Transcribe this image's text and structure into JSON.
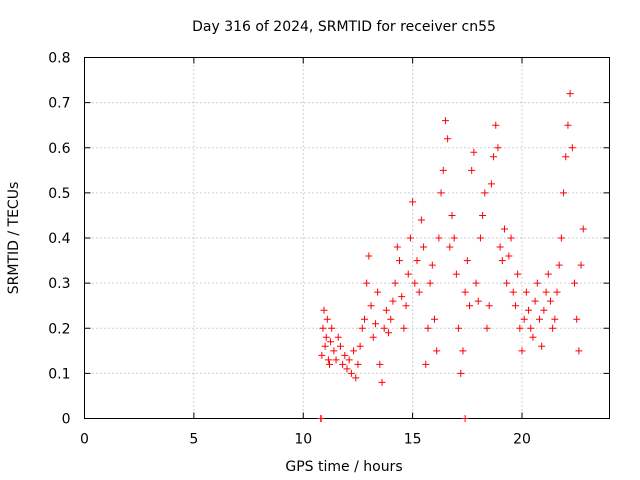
{
  "chart_data": {
    "type": "scatter",
    "title": "Day 316 of 2024, SRMTID for receiver cn55",
    "xlabel": "GPS time / hours",
    "ylabel": "SRMTID / TECUs",
    "xlim": [
      0,
      24
    ],
    "ylim": [
      0,
      0.8
    ],
    "xticks": [
      0,
      5,
      10,
      15,
      20
    ],
    "xtick_labels": [
      "0",
      "5",
      "10",
      "15",
      "20"
    ],
    "yticks": [
      0,
      0.1,
      0.2,
      0.3,
      0.4,
      0.5,
      0.6,
      0.7,
      0.8
    ],
    "ytick_labels": [
      "0",
      "0.1",
      "0.2",
      "0.3",
      "0.4",
      "0.5",
      "0.6",
      "0.7",
      "0.8"
    ],
    "grid": true,
    "legend": "none",
    "marker": "plus",
    "color": "#ff0000",
    "series": [
      {
        "name": "cn55",
        "points": [
          [
            10.8,
            0.0
          ],
          [
            10.82,
            0.0
          ],
          [
            17.4,
            0.0
          ],
          [
            10.85,
            0.14
          ],
          [
            10.9,
            0.2
          ],
          [
            10.95,
            0.24
          ],
          [
            11.0,
            0.16
          ],
          [
            11.05,
            0.18
          ],
          [
            11.1,
            0.22
          ],
          [
            11.15,
            0.13
          ],
          [
            11.2,
            0.12
          ],
          [
            11.25,
            0.17
          ],
          [
            11.3,
            0.2
          ],
          [
            11.4,
            0.15
          ],
          [
            11.5,
            0.13
          ],
          [
            11.6,
            0.18
          ],
          [
            11.7,
            0.16
          ],
          [
            11.8,
            0.12
          ],
          [
            11.9,
            0.14
          ],
          [
            12.0,
            0.11
          ],
          [
            12.1,
            0.13
          ],
          [
            12.2,
            0.1
          ],
          [
            12.3,
            0.15
          ],
          [
            12.4,
            0.09
          ],
          [
            12.5,
            0.12
          ],
          [
            12.6,
            0.16
          ],
          [
            12.7,
            0.2
          ],
          [
            12.8,
            0.22
          ],
          [
            12.9,
            0.3
          ],
          [
            13.0,
            0.36
          ],
          [
            13.1,
            0.25
          ],
          [
            13.2,
            0.18
          ],
          [
            13.3,
            0.21
          ],
          [
            13.4,
            0.28
          ],
          [
            13.5,
            0.12
          ],
          [
            13.6,
            0.08
          ],
          [
            13.7,
            0.2
          ],
          [
            13.8,
            0.24
          ],
          [
            13.9,
            0.19
          ],
          [
            14.0,
            0.22
          ],
          [
            14.1,
            0.26
          ],
          [
            14.2,
            0.3
          ],
          [
            14.3,
            0.38
          ],
          [
            14.4,
            0.35
          ],
          [
            14.5,
            0.27
          ],
          [
            14.6,
            0.2
          ],
          [
            14.7,
            0.25
          ],
          [
            14.8,
            0.32
          ],
          [
            14.9,
            0.4
          ],
          [
            15.0,
            0.48
          ],
          [
            15.1,
            0.3
          ],
          [
            15.2,
            0.35
          ],
          [
            15.3,
            0.28
          ],
          [
            15.4,
            0.44
          ],
          [
            15.5,
            0.38
          ],
          [
            15.6,
            0.12
          ],
          [
            15.7,
            0.2
          ],
          [
            15.8,
            0.3
          ],
          [
            15.9,
            0.34
          ],
          [
            16.0,
            0.22
          ],
          [
            16.1,
            0.15
          ],
          [
            16.2,
            0.4
          ],
          [
            16.3,
            0.5
          ],
          [
            16.4,
            0.55
          ],
          [
            16.5,
            0.66
          ],
          [
            16.6,
            0.62
          ],
          [
            16.7,
            0.38
          ],
          [
            16.8,
            0.45
          ],
          [
            16.9,
            0.4
          ],
          [
            17.0,
            0.32
          ],
          [
            17.1,
            0.2
          ],
          [
            17.2,
            0.1
          ],
          [
            17.3,
            0.15
          ],
          [
            17.4,
            0.28
          ],
          [
            17.5,
            0.35
          ],
          [
            17.6,
            0.25
          ],
          [
            17.7,
            0.55
          ],
          [
            17.8,
            0.59
          ],
          [
            17.9,
            0.3
          ],
          [
            18.0,
            0.26
          ],
          [
            18.1,
            0.4
          ],
          [
            18.2,
            0.45
          ],
          [
            18.3,
            0.5
          ],
          [
            18.4,
            0.2
          ],
          [
            18.5,
            0.25
          ],
          [
            18.6,
            0.52
          ],
          [
            18.7,
            0.58
          ],
          [
            18.8,
            0.65
          ],
          [
            18.9,
            0.6
          ],
          [
            19.0,
            0.38
          ],
          [
            19.1,
            0.35
          ],
          [
            19.2,
            0.42
          ],
          [
            19.3,
            0.3
          ],
          [
            19.4,
            0.36
          ],
          [
            19.5,
            0.4
          ],
          [
            19.6,
            0.28
          ],
          [
            19.7,
            0.25
          ],
          [
            19.8,
            0.32
          ],
          [
            19.9,
            0.2
          ],
          [
            20.0,
            0.15
          ],
          [
            20.1,
            0.22
          ],
          [
            20.2,
            0.28
          ],
          [
            20.3,
            0.24
          ],
          [
            20.4,
            0.2
          ],
          [
            20.5,
            0.18
          ],
          [
            20.6,
            0.26
          ],
          [
            20.7,
            0.3
          ],
          [
            20.8,
            0.22
          ],
          [
            20.9,
            0.16
          ],
          [
            21.0,
            0.24
          ],
          [
            21.1,
            0.28
          ],
          [
            21.2,
            0.32
          ],
          [
            21.3,
            0.26
          ],
          [
            21.4,
            0.2
          ],
          [
            21.5,
            0.22
          ],
          [
            21.6,
            0.28
          ],
          [
            21.7,
            0.34
          ],
          [
            21.8,
            0.4
          ],
          [
            21.9,
            0.5
          ],
          [
            22.0,
            0.58
          ],
          [
            22.1,
            0.65
          ],
          [
            22.2,
            0.72
          ],
          [
            22.3,
            0.6
          ],
          [
            22.4,
            0.3
          ],
          [
            22.5,
            0.22
          ],
          [
            22.6,
            0.15
          ],
          [
            22.7,
            0.34
          ],
          [
            22.8,
            0.42
          ]
        ]
      }
    ]
  }
}
